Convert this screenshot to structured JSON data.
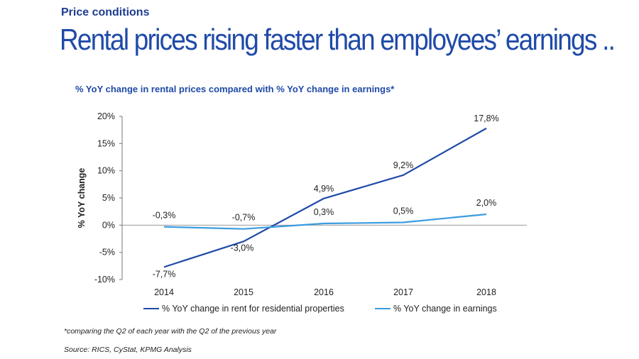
{
  "header": {
    "supertitle": "Price conditions",
    "headline": "Rental prices rising faster than employees’ earnings .."
  },
  "chart_data": {
    "type": "line",
    "title": "% YoY change in rental prices compared with % YoY change in earnings*",
    "xlabel": "",
    "ylabel": "% YoY change",
    "categories": [
      "2014",
      "2015",
      "2016",
      "2017",
      "2018"
    ],
    "ylim": [
      -10,
      20
    ],
    "yticks": [
      "20%",
      "15%",
      "10%",
      "5%",
      "0%",
      "-5%",
      "-10%"
    ],
    "legend_position": "bottom",
    "series": [
      {
        "name": "% YoY change in rent for residential properties",
        "color": "#1f4aa8",
        "values": [
          -7.7,
          -3.0,
          4.9,
          9.2,
          17.8
        ],
        "labels": [
          "-7,7%",
          "-3,0%",
          "4,9%",
          "9,2%",
          "17,8%"
        ]
      },
      {
        "name": "% YoY change in earnings",
        "color": "#3a9be0",
        "values": [
          -0.3,
          -0.7,
          0.3,
          0.5,
          2.0
        ],
        "labels": [
          "-0,3%",
          "-0,7%",
          "0,3%",
          "0,5%",
          "2,0%"
        ]
      }
    ]
  },
  "footnote": "*comparing the Q2 of each year with the Q2 of the previous year",
  "source": "Source: RICS, CyStat, KPMG Analysis"
}
